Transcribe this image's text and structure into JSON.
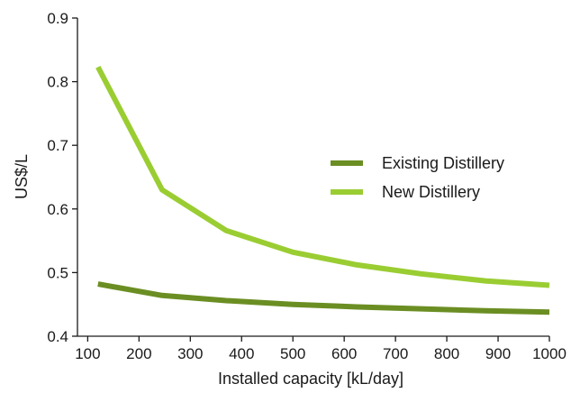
{
  "chart_data": {
    "type": "line",
    "title": "",
    "xlabel": "Installed capacity [kL/day]",
    "ylabel": "US$/L",
    "xlim": [
      100,
      1000
    ],
    "ylim": [
      0.4,
      0.9
    ],
    "xticks": [
      100,
      200,
      300,
      400,
      500,
      600,
      700,
      800,
      900,
      1000
    ],
    "yticks": [
      0.4,
      0.5,
      0.6,
      0.7,
      0.8,
      0.9
    ],
    "xtick_labels": [
      "100",
      "200",
      "300",
      "400",
      "500",
      "600",
      "700",
      "800",
      "900",
      "1000"
    ],
    "ytick_labels": [
      "0.4",
      "0.5",
      "0.6",
      "0.7",
      "0.8",
      "0.9"
    ],
    "grid": false,
    "legend_position": "right",
    "series": [
      {
        "name": "Existing Distillery",
        "color": "#6b8e23",
        "x": [
          120,
          245,
          370,
          500,
          625,
          750,
          875,
          1000
        ],
        "y": [
          0.482,
          0.464,
          0.456,
          0.45,
          0.446,
          0.443,
          0.44,
          0.438
        ]
      },
      {
        "name": "New Distillery",
        "color": "#9acd32",
        "x": [
          120,
          245,
          370,
          500,
          625,
          750,
          875,
          1000
        ],
        "y": [
          0.823,
          0.63,
          0.566,
          0.532,
          0.512,
          0.498,
          0.487,
          0.48
        ]
      }
    ]
  }
}
